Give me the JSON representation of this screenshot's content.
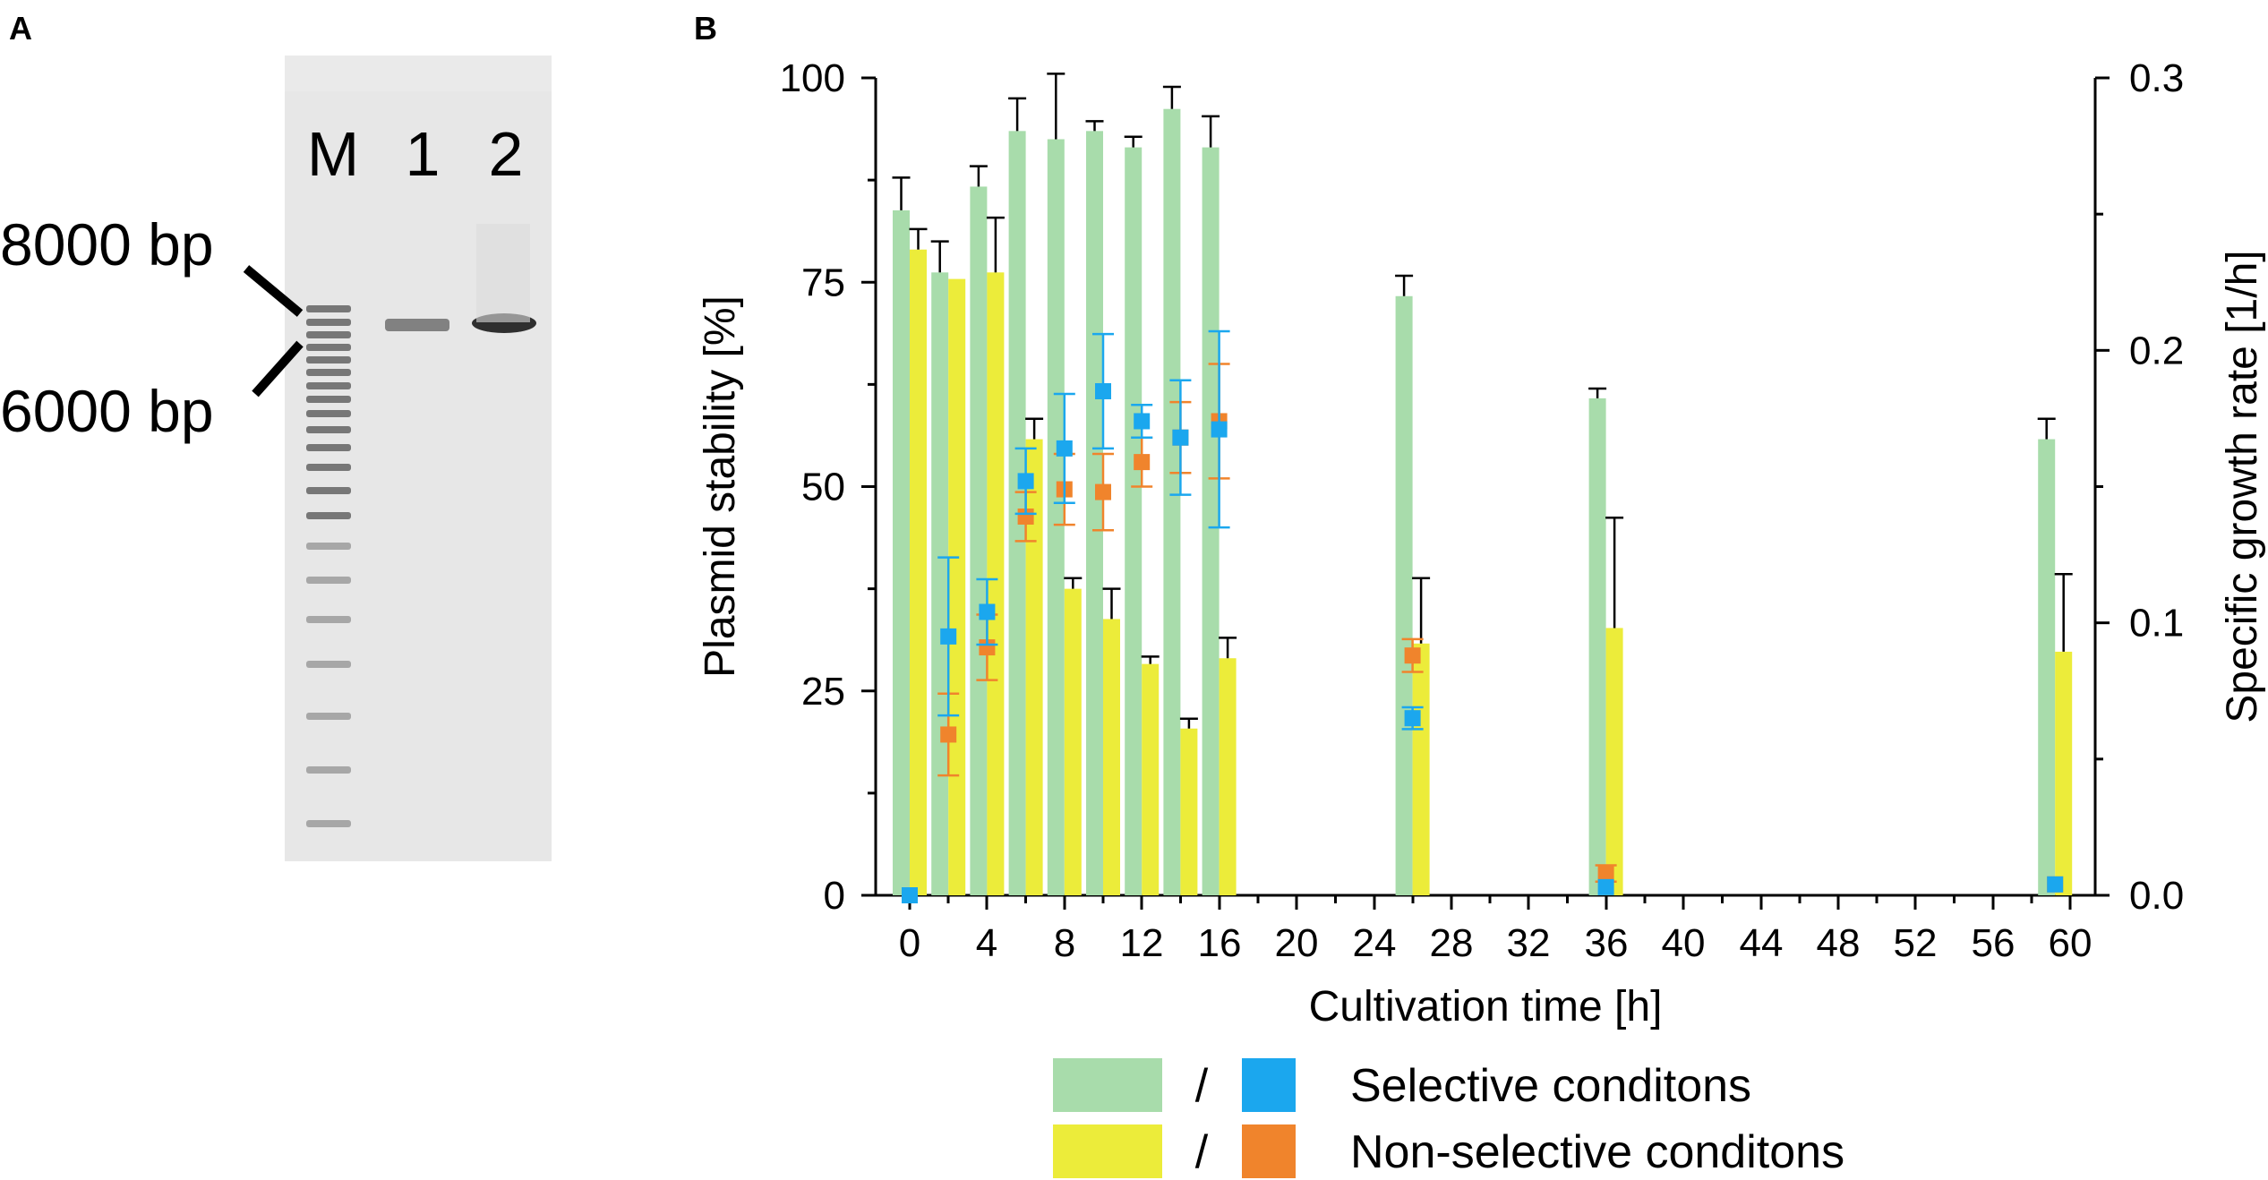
{
  "panel_a": {
    "letter": "A",
    "lane_labels": [
      "M",
      "1",
      "2"
    ],
    "marker_8000": "8000 bp",
    "marker_6000": "6000 bp"
  },
  "panel_b": {
    "letter": "B"
  },
  "colors": {
    "selective_bar": "#a8dcab",
    "nonselective_bar": "#ecec3a",
    "selective_marker": "#1ba7ee",
    "nonselective_marker": "#f0842c",
    "gel_bg": "#e7e7e7"
  },
  "chart_data": {
    "type": "bar",
    "title": "",
    "xlabel": "Cultivation time [h]",
    "ylabel": "Plasmid stability [%]",
    "ylabel_right": "Specific growth rate [1/h]",
    "ylim": [
      0,
      100
    ],
    "ylim_right": [
      0,
      0.3
    ],
    "yticks": [
      0,
      25,
      50,
      75,
      100
    ],
    "yticks_right": [
      0.0,
      0.1,
      0.2,
      0.3
    ],
    "xtick_labels": [
      "0",
      "4",
      "8",
      "12",
      "16",
      "20",
      "24",
      "28",
      "32",
      "36",
      "40",
      "44",
      "48",
      "52",
      "56",
      "60"
    ],
    "timepoints": [
      0,
      2,
      4,
      6,
      8,
      10,
      12,
      14,
      16,
      26,
      36,
      60
    ],
    "series": [
      {
        "name": "Selective conditons (plasmid stability)",
        "kind": "bar",
        "axis": "left",
        "values": [
          83.8,
          76.2,
          86.7,
          93.5,
          92.5,
          93.5,
          91.5,
          96.2,
          91.5,
          73.3,
          60.8,
          55.8
        ],
        "errors": [
          4.0,
          3.8,
          2.5,
          4.0,
          8.0,
          1.2,
          1.3,
          2.7,
          3.8,
          2.5,
          1.2,
          2.5
        ]
      },
      {
        "name": "Non-selective conditons (plasmid stability)",
        "kind": "bar",
        "axis": "left",
        "values": [
          79.0,
          75.4,
          76.2,
          55.8,
          37.5,
          33.8,
          28.3,
          20.4,
          29.0,
          30.8,
          32.7,
          29.8
        ],
        "errors": [
          2.5,
          0,
          6.7,
          2.5,
          1.3,
          3.7,
          0.9,
          1.2,
          2.5,
          8.0,
          13.5,
          9.5
        ]
      },
      {
        "name": "Selective conditons (specific growth rate)",
        "kind": "marker",
        "axis": "right",
        "values": [
          0.0,
          0.095,
          0.104,
          0.152,
          0.164,
          0.185,
          0.174,
          0.168,
          0.171,
          0.065,
          0.003,
          0.004
        ],
        "errors": [
          0,
          0.029,
          0.012,
          0.012,
          0.02,
          0.021,
          0.006,
          0.021,
          0.036,
          0.004,
          0,
          0
        ]
      },
      {
        "name": "Non-selective conditons (specific growth rate)",
        "kind": "marker",
        "axis": "right",
        "values": [
          0.0,
          0.059,
          0.091,
          0.139,
          0.149,
          0.148,
          0.159,
          0.168,
          0.174,
          0.088,
          0.008,
          0.004
        ],
        "errors": [
          0,
          0.015,
          0.012,
          0.009,
          0.013,
          0.014,
          0.009,
          0.013,
          0.021,
          0.006,
          0.003,
          0
        ]
      }
    ],
    "legend": {
      "separator": "/",
      "entries": [
        "Selective conditons",
        "Non-selective conditons"
      ],
      "placement": "bottom"
    }
  }
}
